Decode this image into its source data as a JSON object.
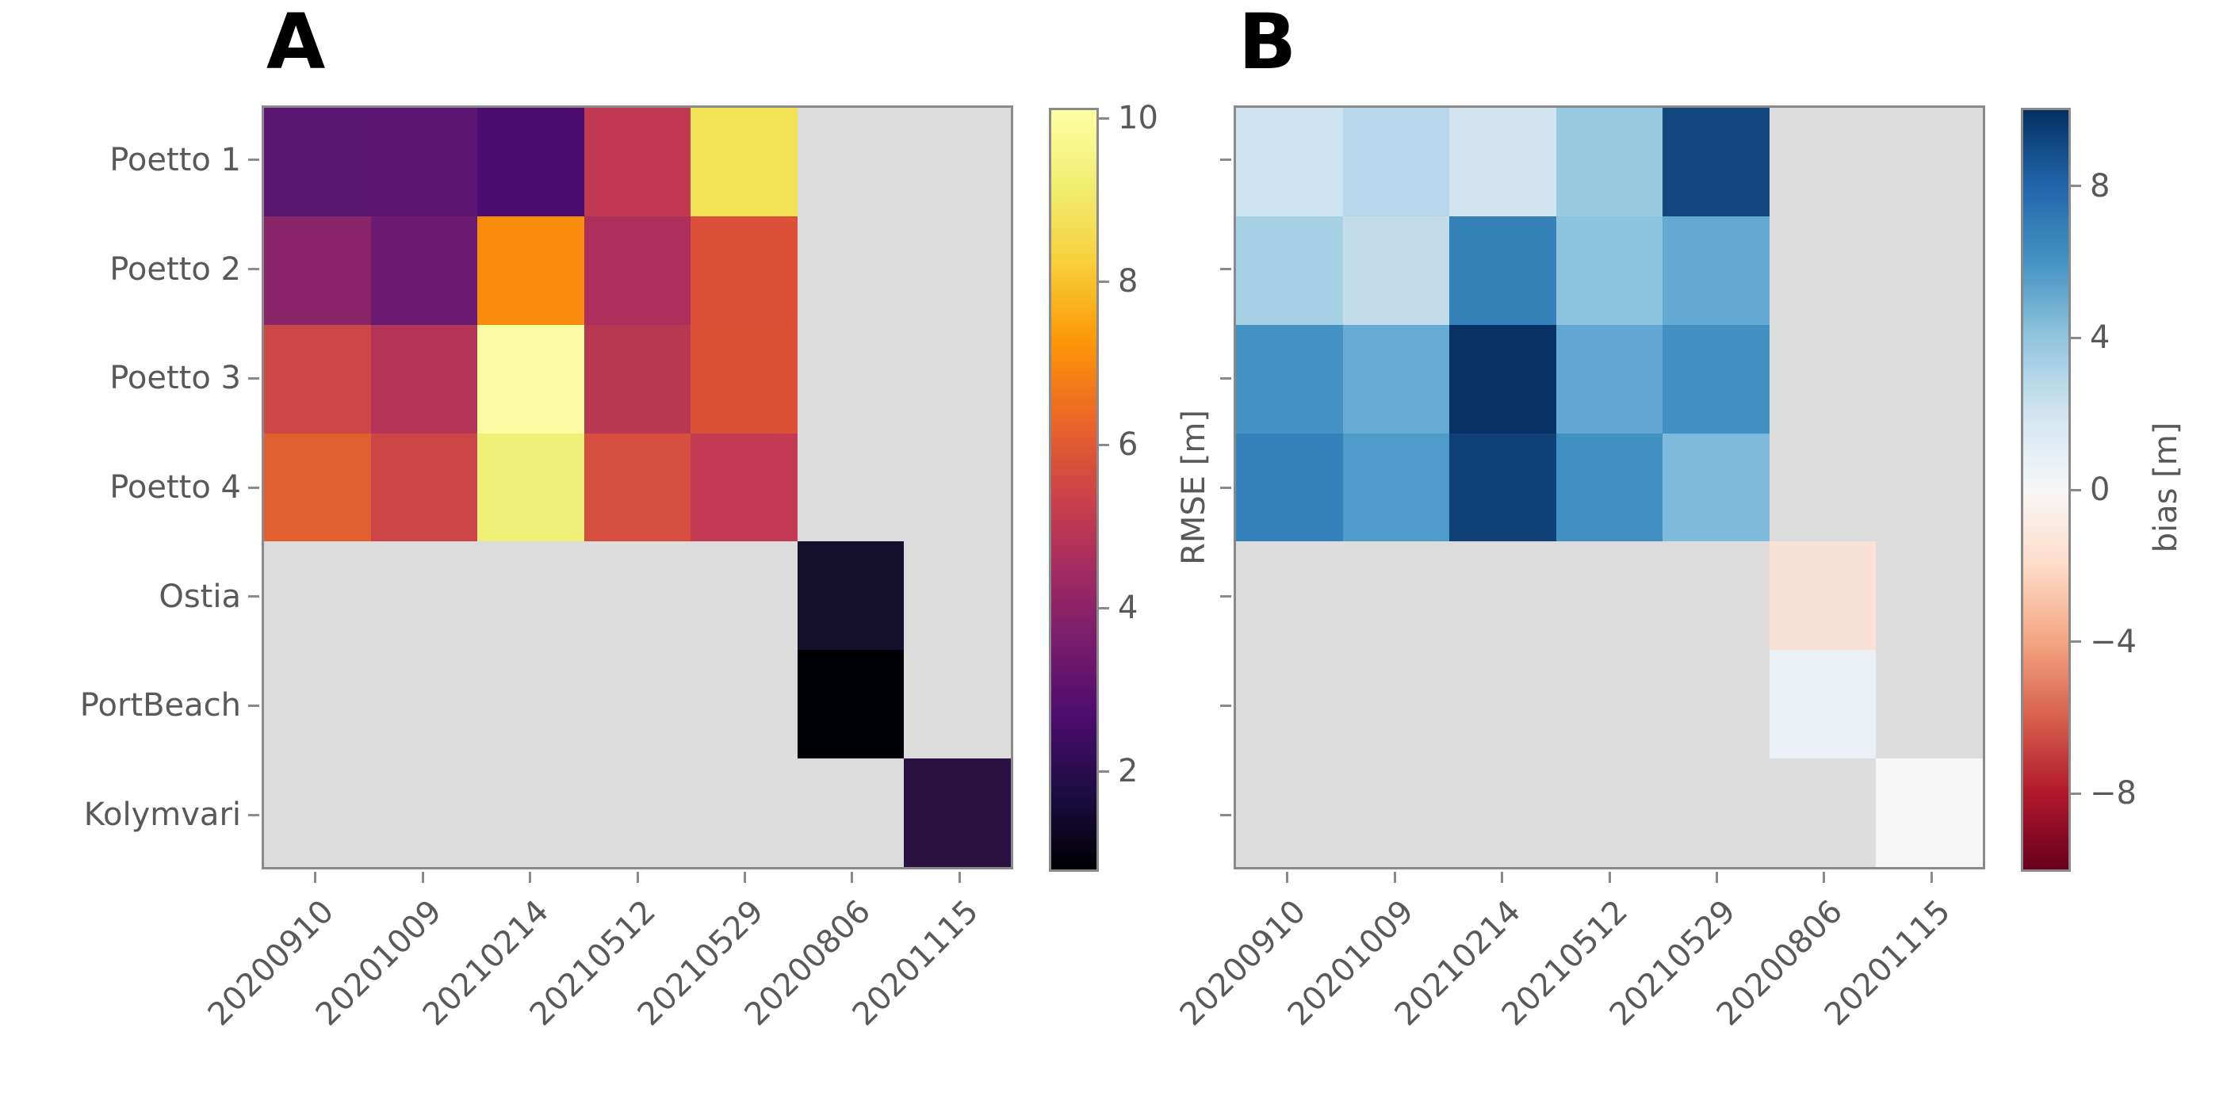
{
  "figure": {
    "background": "#ffffff",
    "empty_cell_color": "#dcdcdc",
    "frame_color": "#8a8a8a",
    "label_color": "#595959"
  },
  "chart_data": [
    {
      "type": "heatmap",
      "title": "A",
      "colormap": "inferno",
      "colorbar_label": "RMSE [m]",
      "colorbar_ticks": [
        10,
        8,
        6,
        4,
        2
      ],
      "vmin": 0.8,
      "vmax": 10.1,
      "legend_position": "right-colorbar",
      "grid": false,
      "categories_x": [
        "20200910",
        "20201009",
        "20210214",
        "20210512",
        "20210529",
        "20200806",
        "20201115"
      ],
      "categories_y": [
        "Poetto 1",
        "Poetto 2",
        "Poetto 3",
        "Poetto 4",
        "Ostia",
        "PortBeach",
        "Kolymvari"
      ],
      "values": [
        [
          3.0,
          3.0,
          2.7,
          5.2,
          9.0,
          null,
          null
        ],
        [
          4.0,
          3.4,
          7.2,
          4.7,
          5.9,
          null,
          null
        ],
        [
          5.5,
          4.9,
          10.0,
          5.0,
          5.9,
          null,
          null
        ],
        [
          6.3,
          5.5,
          9.4,
          5.7,
          5.2,
          null,
          null
        ],
        [
          null,
          null,
          null,
          null,
          null,
          1.5,
          null
        ],
        [
          null,
          null,
          null,
          null,
          null,
          0.9,
          null
        ],
        [
          null,
          null,
          null,
          null,
          null,
          null,
          1.9
        ]
      ],
      "cell_colors": [
        [
          "#5a1670",
          "#5b1470",
          "#4a0c6e",
          "#c23a51",
          "#f2e356",
          null,
          null
        ],
        [
          "#8b2569",
          "#6b1a72",
          "#f78c0c",
          "#ac2f5c",
          "#db5039",
          null,
          null
        ],
        [
          "#cc4748",
          "#b33456",
          "#fbfca3",
          "#b63851",
          "#db5138",
          null,
          null
        ],
        [
          "#e2602f",
          "#cc4547",
          "#eff077",
          "#d54e3f",
          "#c23b52",
          null,
          null
        ],
        [
          null,
          null,
          null,
          null,
          null,
          "#16102f",
          null
        ],
        [
          null,
          null,
          null,
          null,
          null,
          "#030108",
          null
        ],
        [
          null,
          null,
          null,
          null,
          null,
          null,
          "#2a1240"
        ]
      ],
      "empty_color": "#dcdcdc",
      "gradient_stops_bottom_to_top": [
        "#000004",
        "#1b0c42",
        "#4b0c6b",
        "#781c6d",
        "#a52c60",
        "#cf4446",
        "#ed6925",
        "#fb9a06",
        "#f7d03c",
        "#f1ed71",
        "#fcffa4"
      ]
    },
    {
      "type": "heatmap",
      "title": "B",
      "colormap": "RdBu",
      "colorbar_label": "bias [m]",
      "colorbar_ticks": [
        8,
        4,
        0,
        -4,
        -8
      ],
      "vmin": -10,
      "vmax": 10,
      "legend_position": "right-colorbar",
      "grid": false,
      "categories_x": [
        "20200910",
        "20201009",
        "20210214",
        "20210512",
        "20210529",
        "20200806",
        "20201115"
      ],
      "categories_y": [
        "Poetto 1",
        "Poetto 2",
        "Poetto 3",
        "Poetto 4",
        "Ostia",
        "PortBeach",
        "Kolymvari"
      ],
      "values": [
        [
          2.4,
          3.3,
          2.3,
          4.3,
          9.2,
          null,
          null
        ],
        [
          3.8,
          2.9,
          7.2,
          4.6,
          5.9,
          null,
          null
        ],
        [
          6.8,
          5.8,
          9.9,
          5.9,
          6.9,
          null,
          null
        ],
        [
          7.2,
          6.4,
          9.5,
          6.9,
          5.1,
          null,
          null
        ],
        [
          null,
          null,
          null,
          null,
          null,
          -1.2,
          null
        ],
        [
          null,
          null,
          null,
          null,
          null,
          0.6,
          null
        ],
        [
          null,
          null,
          null,
          null,
          null,
          null,
          0.0
        ]
      ],
      "cell_colors": [
        [
          "#cee3f0",
          "#b7d6e9",
          "#d2e4f0",
          "#97c9e0",
          "#14477e",
          null,
          null
        ],
        [
          "#a6d0e4",
          "#c2dcec",
          "#3480b9",
          "#8cc3dd",
          "#63a9d2",
          null,
          null
        ],
        [
          "#4392c3",
          "#66abd2",
          "#083264",
          "#62a7d1",
          "#4090c1",
          null,
          null
        ],
        [
          "#3583bc",
          "#4f9bc9",
          "#104176",
          "#4190c2",
          "#7fbadc",
          null,
          null
        ],
        [
          null,
          null,
          null,
          null,
          null,
          "#f9e1d5",
          null
        ],
        [
          null,
          null,
          null,
          null,
          null,
          "#e9eff5",
          null
        ],
        [
          null,
          null,
          null,
          null,
          null,
          null,
          "#f6f6f7"
        ]
      ],
      "empty_color": "#dcdcdc",
      "gradient_stops_bottom_to_top": [
        "#67001f",
        "#b2182b",
        "#d6604d",
        "#f4a582",
        "#fddbc7",
        "#f7f7f7",
        "#d1e5f0",
        "#92c5de",
        "#4393c3",
        "#2166ac",
        "#053061"
      ]
    }
  ]
}
